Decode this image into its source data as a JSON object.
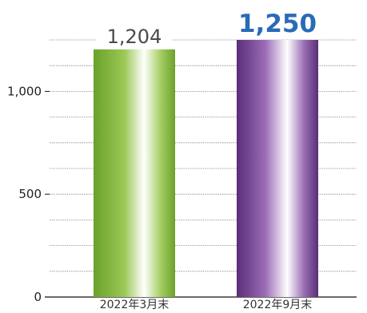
{
  "chart_data": {
    "type": "bar",
    "categories": [
      "2022年3月末",
      "2022年9月末"
    ],
    "values": [
      1204,
      1250
    ],
    "data_labels": [
      "1,204",
      "1,250"
    ],
    "highlight_index": 1,
    "yticks": [
      0,
      500,
      1000
    ],
    "ytick_labels": [
      "0",
      "500",
      "1,000"
    ],
    "ylim": [
      0,
      1350
    ],
    "minor_gridline_step": 125,
    "grid": "horizontal dashed",
    "title": "",
    "xlabel": "",
    "ylabel": "",
    "colors": {
      "bar_1": "#7cb22e",
      "bar_2": "#7a4a96",
      "highlight_label": "#2a6bb8",
      "normal_label": "#4a4a4a",
      "grid": "#888888",
      "axis": "#111111"
    }
  }
}
